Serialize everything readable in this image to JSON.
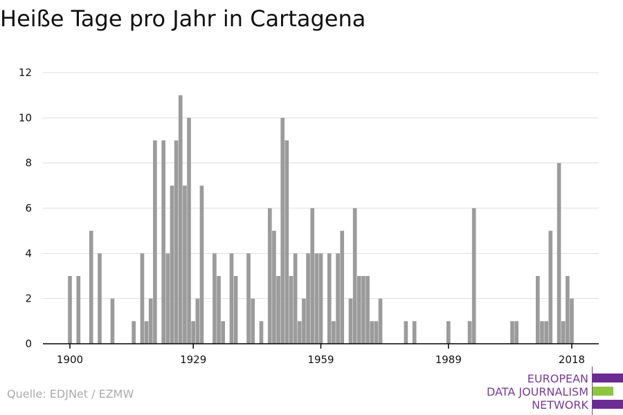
{
  "title": "Heiße Tage pro Jahr in Cartagena",
  "source": "Quelle: EDJNet / EZMW",
  "logo": {
    "line1": "EUROPEAN",
    "line2": "DATA JOURNALISM",
    "line3": "NETWORK",
    "colors": [
      "#6b2c91",
      "#8dc63f",
      "#6b2c91"
    ]
  },
  "colors": {
    "bar": "#9b9b9b",
    "grid": "#dddddd",
    "axis": "#000000",
    "text": "#111111"
  },
  "chart_data": {
    "type": "bar",
    "title": "Heiße Tage pro Jahr in Cartagena",
    "xlabel": "",
    "ylabel": "",
    "ylim": [
      0,
      12
    ],
    "yticks": [
      0,
      2,
      4,
      6,
      8,
      10,
      12
    ],
    "xticks": [
      1900,
      1929,
      1959,
      1989,
      2018
    ],
    "grid": true,
    "x": [
      1900,
      1902,
      1905,
      1907,
      1910,
      1915,
      1917,
      1918,
      1919,
      1920,
      1922,
      1923,
      1924,
      1925,
      1926,
      1927,
      1928,
      1929,
      1930,
      1931,
      1934,
      1935,
      1936,
      1938,
      1939,
      1942,
      1943,
      1945,
      1947,
      1948,
      1949,
      1950,
      1951,
      1952,
      1953,
      1954,
      1955,
      1956,
      1957,
      1958,
      1959,
      1961,
      1962,
      1963,
      1964,
      1966,
      1967,
      1968,
      1969,
      1970,
      1971,
      1972,
      1973,
      1979,
      1981,
      1989,
      1994,
      1995,
      2004,
      2005,
      2010,
      2011,
      2012,
      2013,
      2015,
      2016,
      2017,
      2018
    ],
    "values": [
      3,
      3,
      5,
      4,
      2,
      1,
      4,
      1,
      2,
      9,
      9,
      4,
      7,
      9,
      11,
      7,
      10,
      1,
      2,
      7,
      4,
      3,
      1,
      4,
      3,
      4,
      2,
      1,
      6,
      5,
      3,
      10,
      9,
      3,
      4,
      1,
      2,
      4,
      6,
      4,
      4,
      4,
      1,
      4,
      5,
      2,
      6,
      3,
      3,
      3,
      1,
      1,
      2,
      1,
      1,
      1,
      1,
      6,
      1,
      1,
      3,
      1,
      1,
      5,
      8,
      1,
      3,
      2
    ]
  }
}
